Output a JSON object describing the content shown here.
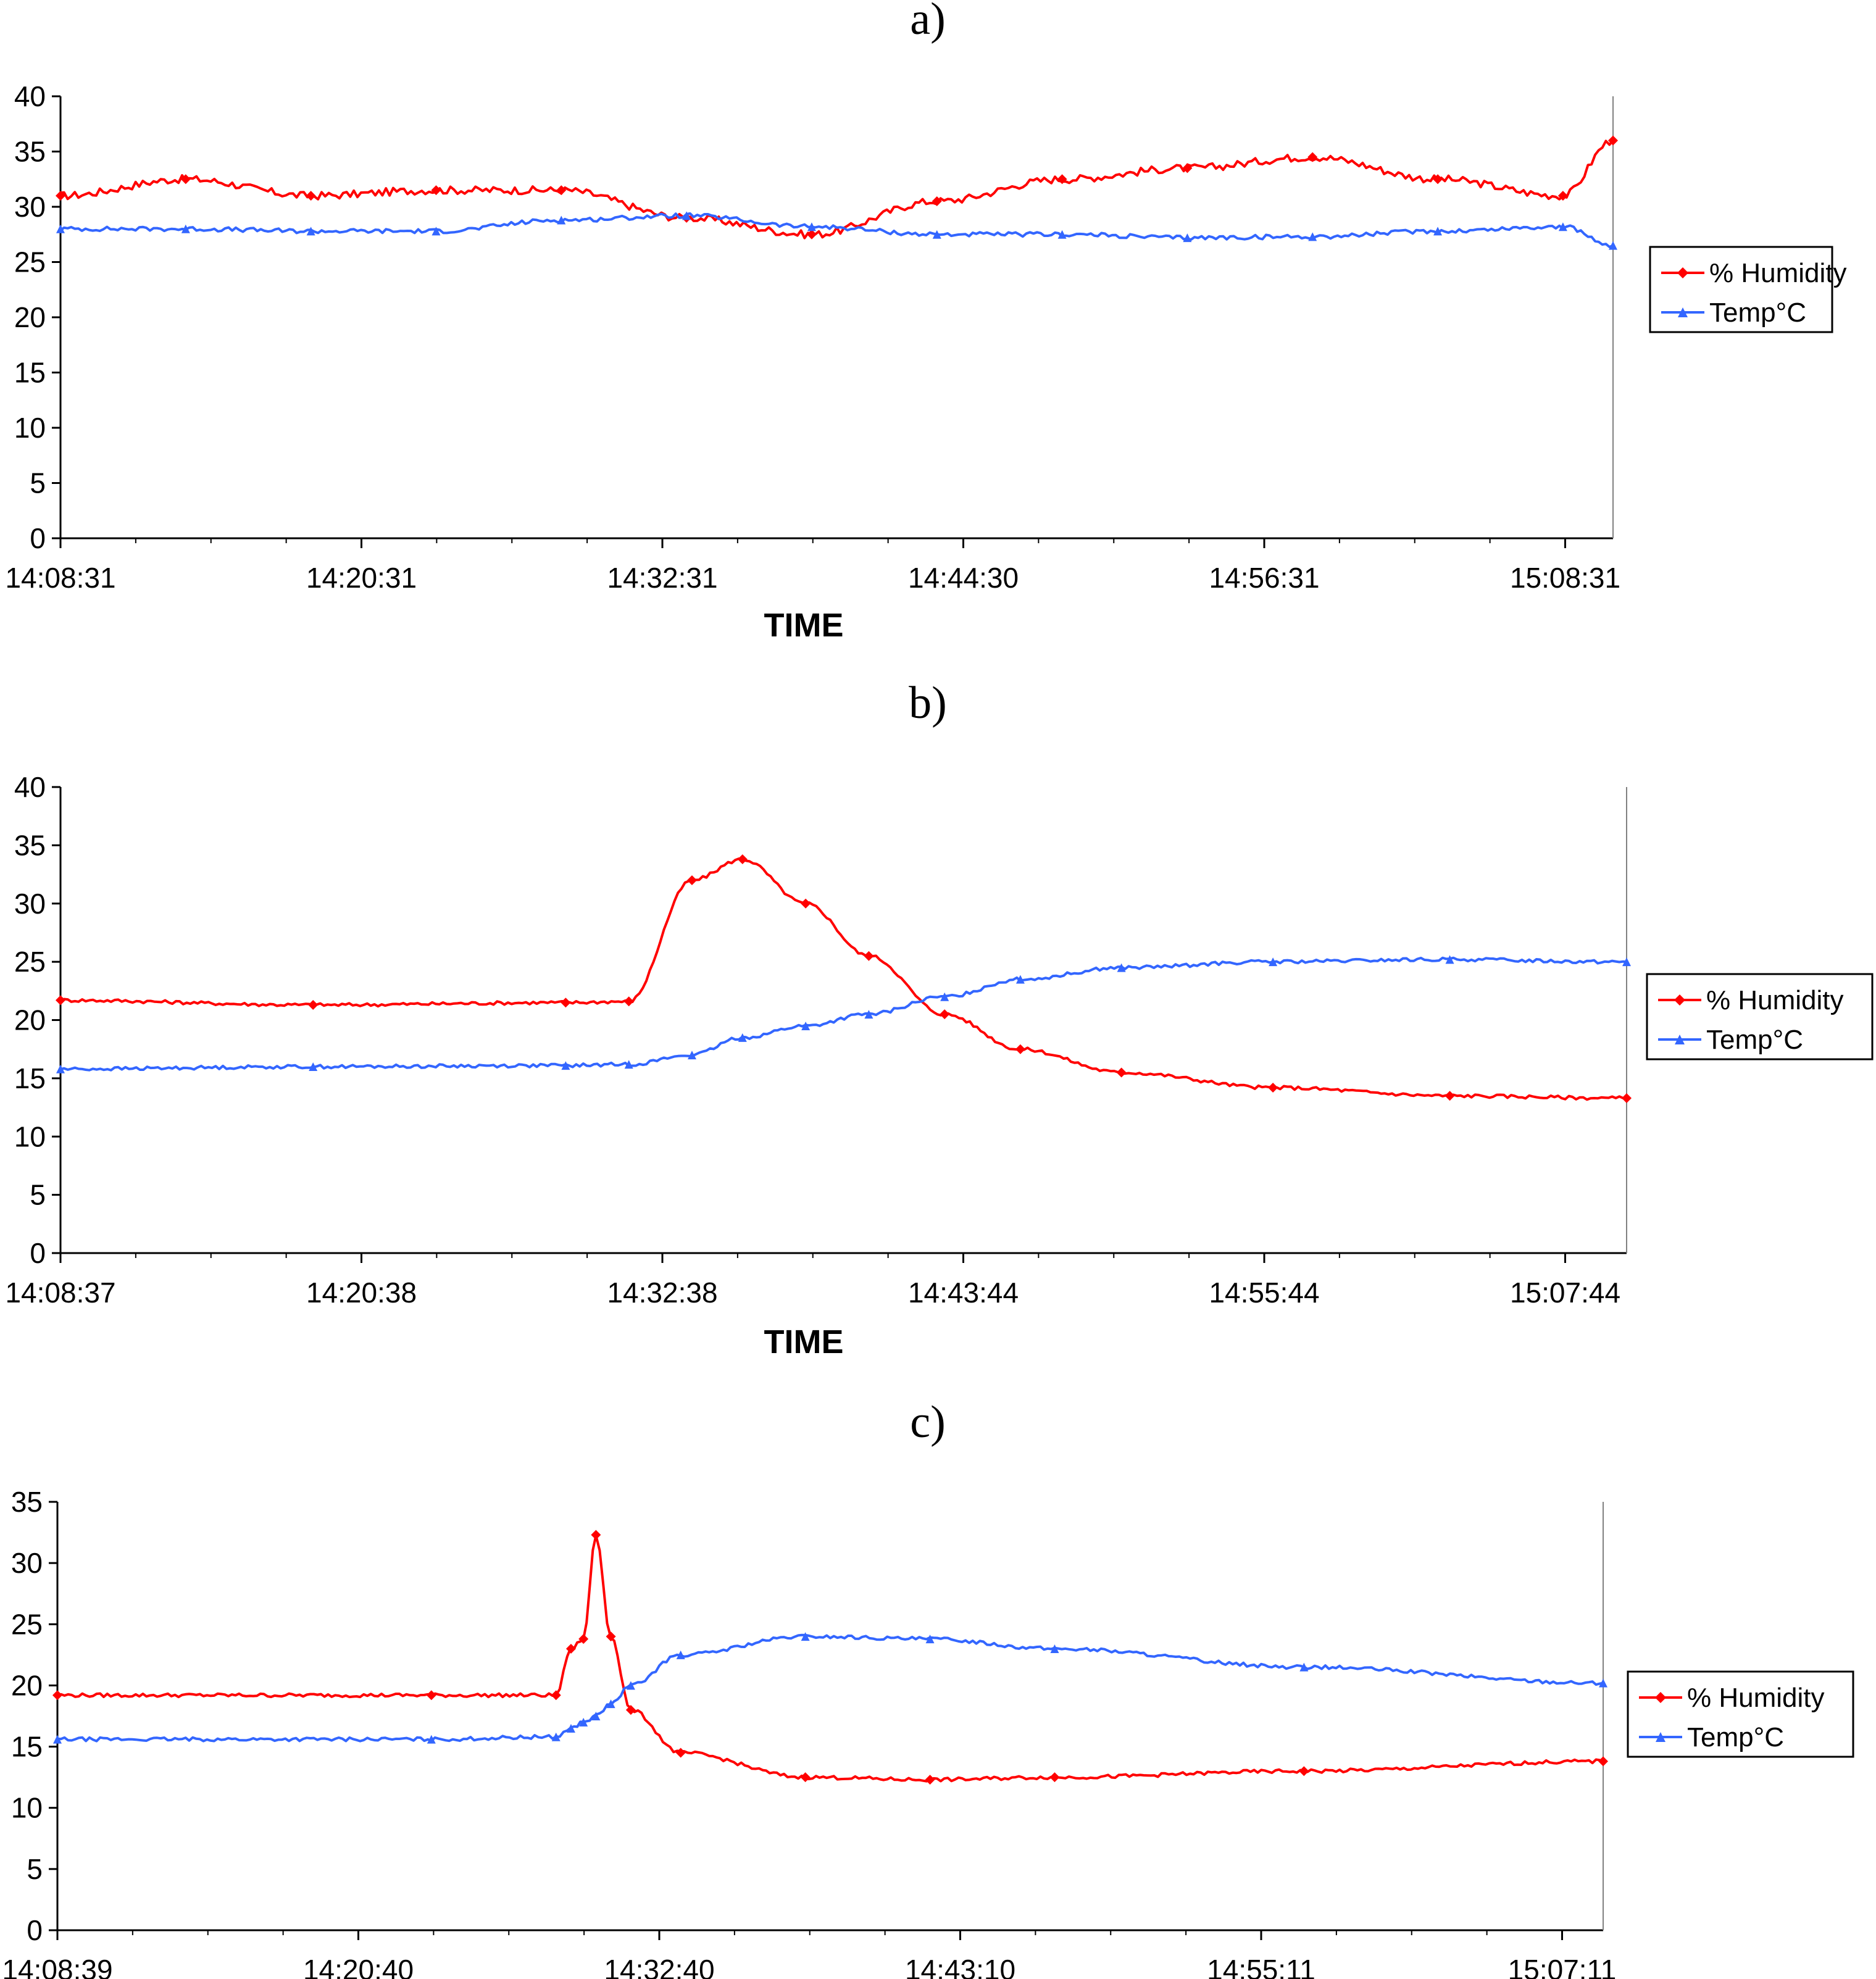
{
  "chart_data": [
    {
      "panel": "a)",
      "type": "line",
      "title": "",
      "xlabel": "TIME",
      "ylabel": "",
      "ylim": [
        0,
        40
      ],
      "yticks": [
        "0",
        "5",
        "10",
        "15",
        "20",
        "25",
        "30",
        "35",
        "40"
      ],
      "x_tick_labels": [
        "14:08:31",
        "14:20:31",
        "14:32:31",
        "14:44:30",
        "14:56:31",
        "15:08:31"
      ],
      "x_minutes": [
        0,
        5,
        10,
        15,
        20,
        25,
        30,
        35,
        40,
        45,
        50,
        55,
        60,
        62
      ],
      "series": [
        {
          "name": "% Humidity",
          "color": "#ff0000",
          "marker": "diamond",
          "values": [
            31,
            32.5,
            31,
            31.5,
            31.5,
            29,
            27.5,
            30.5,
            32.5,
            33.5,
            34.5,
            32.5,
            31,
            36
          ]
        },
        {
          "name": "Temp°C",
          "color": "#3366ff",
          "marker": "triangle",
          "values": [
            28,
            28,
            27.8,
            27.8,
            28.8,
            29.2,
            28.2,
            27.5,
            27.5,
            27.2,
            27.3,
            27.8,
            28.2,
            26.5
          ]
        }
      ],
      "legend": "right"
    },
    {
      "panel": "b)",
      "type": "line",
      "title": "",
      "xlabel": "TIME",
      "ylabel": "",
      "ylim": [
        0,
        40
      ],
      "yticks": [
        "0",
        "5",
        "10",
        "15",
        "20",
        "25",
        "30",
        "35",
        "40"
      ],
      "x_tick_labels": [
        "14:08:37",
        "14:20:38",
        "14:32:38",
        "14:43:44",
        "14:55:44",
        "15:07:44"
      ],
      "x_minutes": [
        0,
        10,
        20,
        22.5,
        25,
        27,
        29.5,
        32,
        35,
        38,
        42,
        48,
        55,
        62
      ],
      "series": [
        {
          "name": "% Humidity",
          "color": "#ff0000",
          "marker": "diamond",
          "values": [
            21.7,
            21.3,
            21.5,
            21.6,
            32,
            33.8,
            30,
            25.5,
            20.5,
            17.5,
            15.5,
            14.2,
            13.5,
            13.3
          ]
        },
        {
          "name": "Temp°C",
          "color": "#3366ff",
          "marker": "triangle",
          "values": [
            15.8,
            16,
            16.1,
            16.2,
            17,
            18.5,
            19.5,
            20.5,
            22,
            23.5,
            24.5,
            25,
            25.2,
            25
          ]
        }
      ],
      "legend": "right"
    },
    {
      "panel": "c)",
      "type": "line",
      "title": "",
      "xlabel": "",
      "ylabel": "",
      "ylim": [
        0,
        35
      ],
      "yticks": [
        "0",
        "5",
        "10",
        "15",
        "20",
        "25",
        "30",
        "35"
      ],
      "x_tick_labels": [
        "14:08:39",
        "14:20:40",
        "14:32:40",
        "14:43:10",
        "14:55:11",
        "15:07:11"
      ],
      "x_minutes": [
        0,
        15,
        20,
        20.6,
        21.1,
        21.6,
        22.2,
        23,
        25,
        30,
        35,
        40,
        50,
        62
      ],
      "series": [
        {
          "name": "% Humidity",
          "color": "#ff0000",
          "marker": "diamond",
          "values": [
            19.2,
            19.2,
            19.2,
            23,
            23.8,
            32.3,
            24,
            18,
            14.5,
            12.5,
            12.3,
            12.5,
            13,
            13.8
          ]
        },
        {
          "name": "Temp°C",
          "color": "#3366ff",
          "marker": "triangle",
          "values": [
            15.6,
            15.6,
            15.8,
            16.5,
            17,
            17.5,
            18.5,
            20,
            22.5,
            24,
            23.8,
            23,
            21.5,
            20.2
          ]
        }
      ],
      "legend": "right"
    }
  ]
}
